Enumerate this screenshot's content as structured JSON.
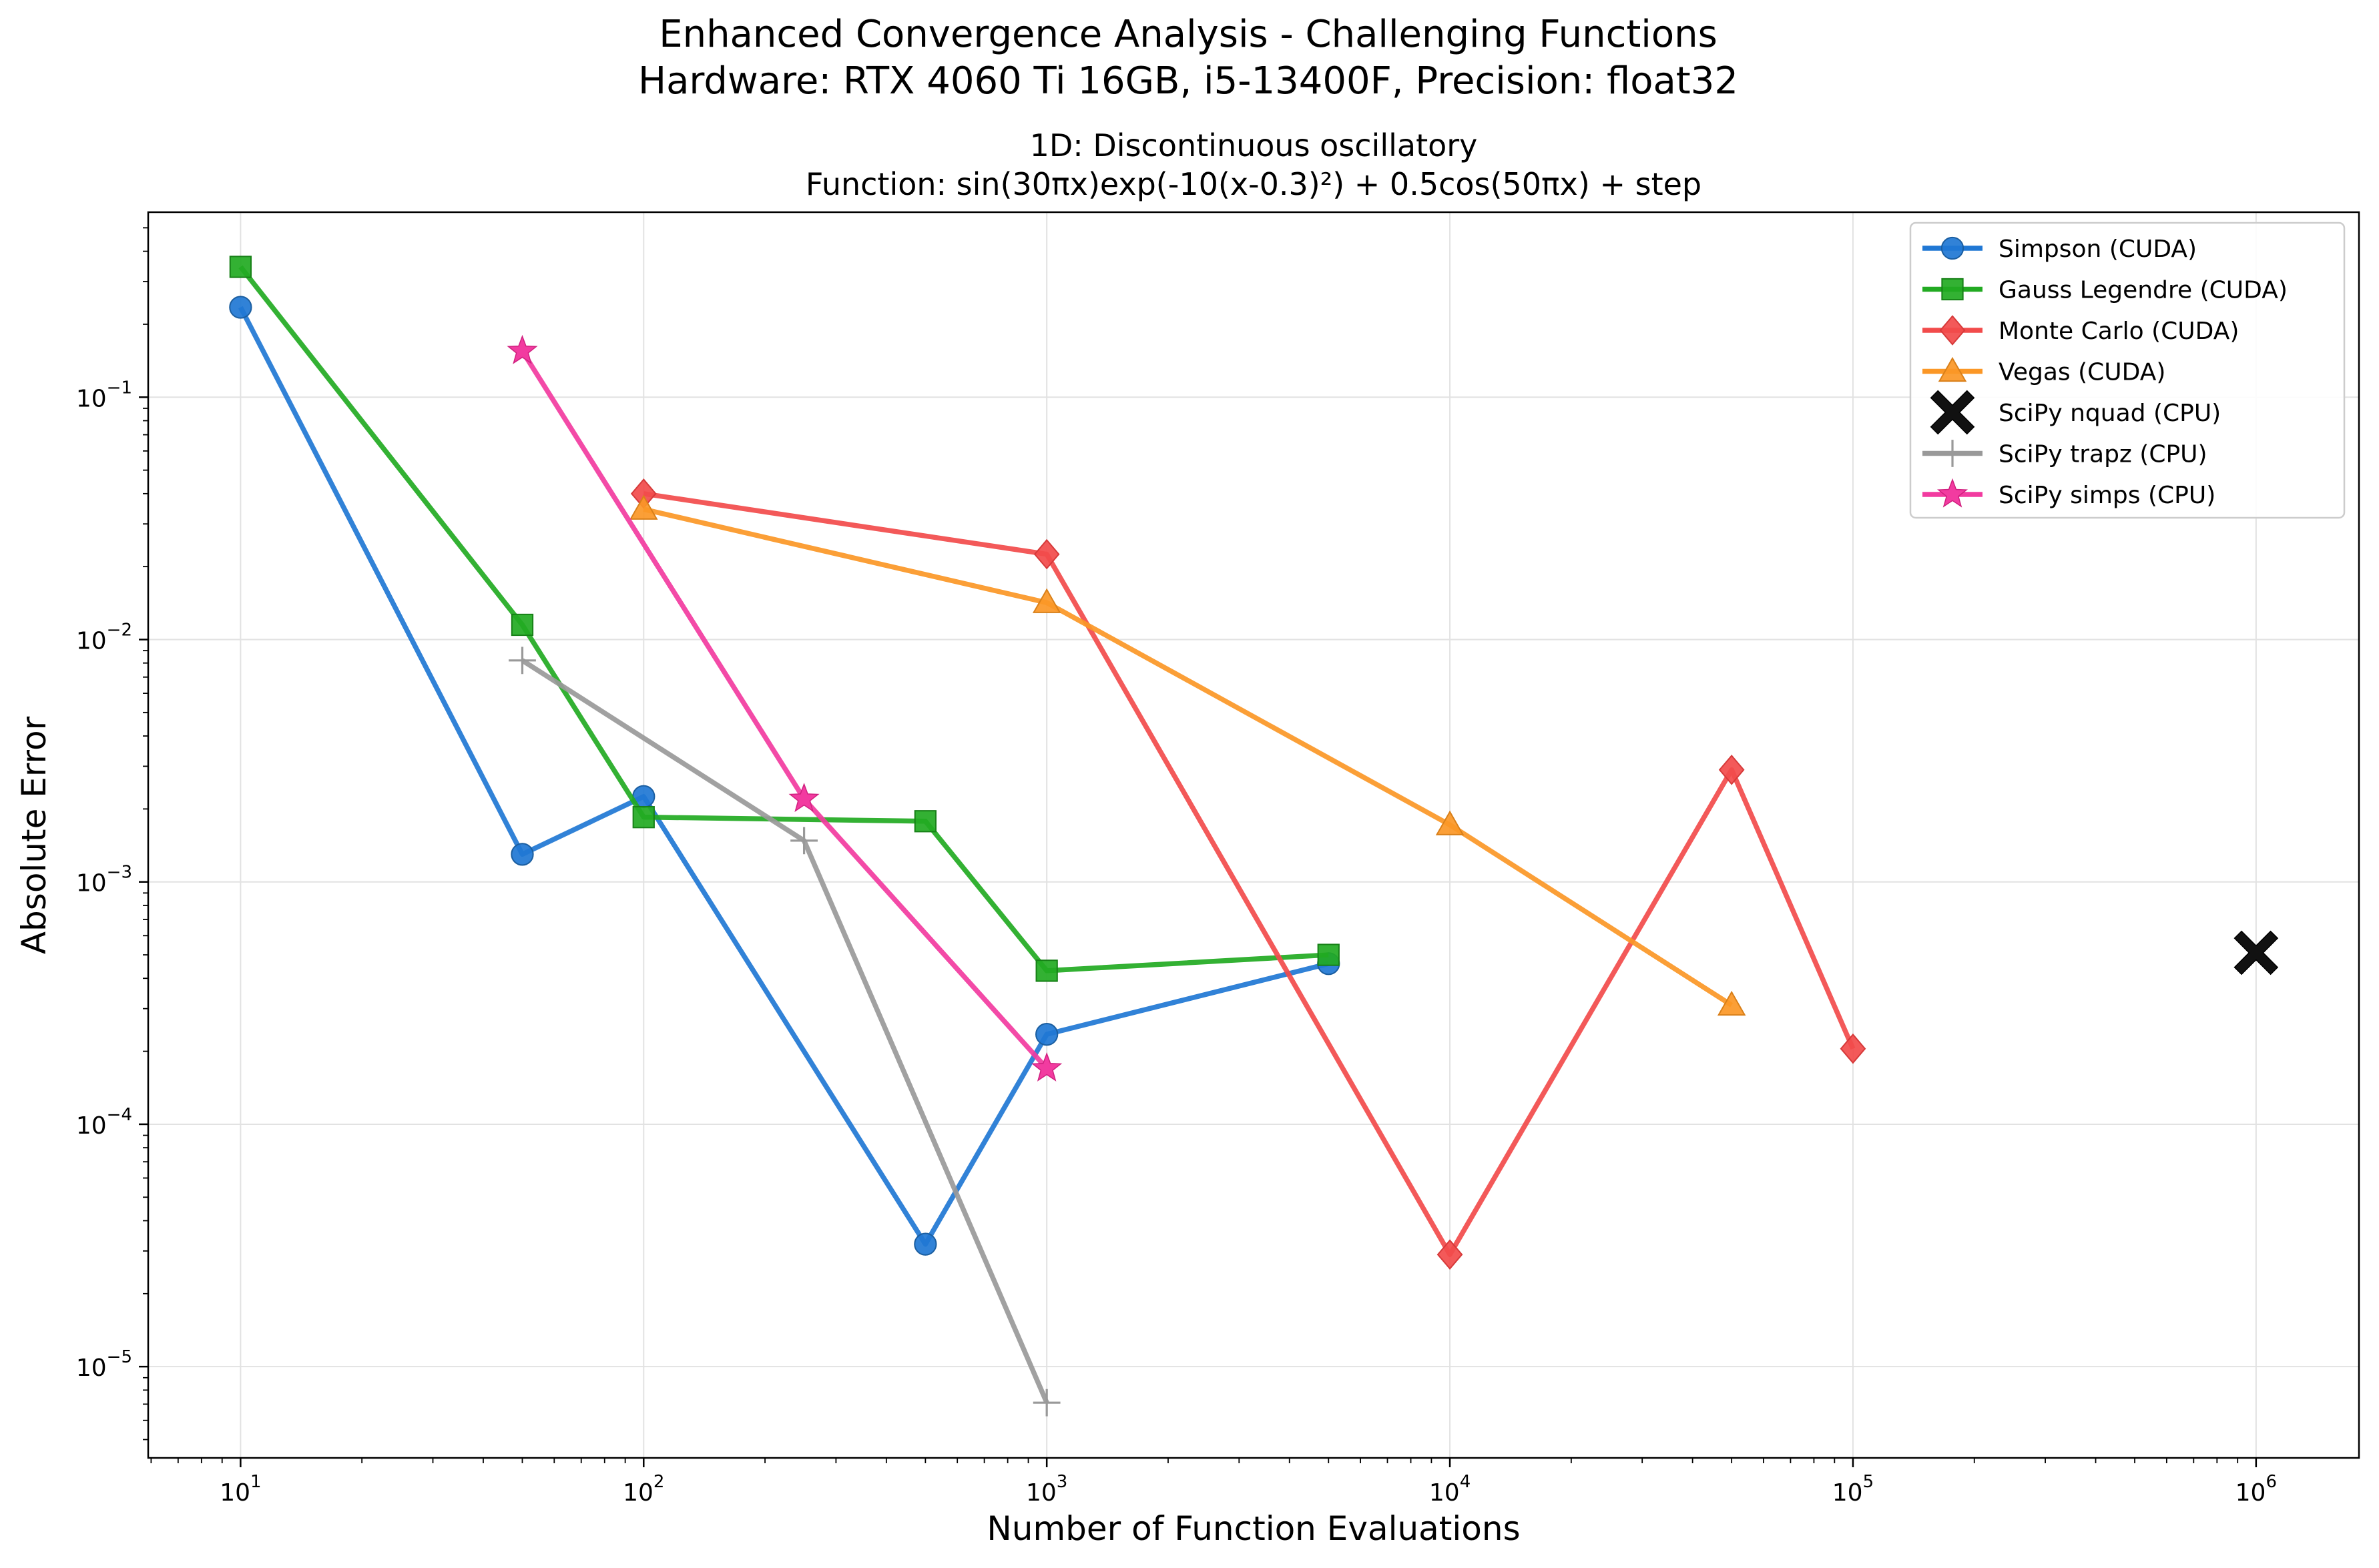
{
  "figure": {
    "suptitle_line1": "Enhanced Convergence Analysis - Challenging Functions",
    "suptitle_line2": "Hardware: RTX 4060 Ti 16GB, i5-13400F, Precision: float32"
  },
  "chart_data": {
    "type": "line",
    "title_line1": "1D: Discontinuous oscillatory",
    "title_line2": "Function: sin(30πx)exp(-10(x-0.3)²) + 0.5cos(50πx) + step",
    "xlabel": "Number of Function Evaluations",
    "ylabel": "Absolute Error",
    "xscale": "log",
    "yscale": "log",
    "xlim": [
      5.9,
      1800000.0
    ],
    "ylim": [
      4.2e-06,
      0.58
    ],
    "grid": true,
    "legend_loc": "upper right",
    "x_ticks": [
      {
        "value": 10,
        "base": "10",
        "exp": "1"
      },
      {
        "value": 100,
        "base": "10",
        "exp": "2"
      },
      {
        "value": 1000,
        "base": "10",
        "exp": "3"
      },
      {
        "value": 10000,
        "base": "10",
        "exp": "4"
      },
      {
        "value": 100000,
        "base": "10",
        "exp": "5"
      },
      {
        "value": 1000000,
        "base": "10",
        "exp": "6"
      }
    ],
    "y_ticks": [
      {
        "value": 1e-05,
        "base": "10",
        "exp": "−5"
      },
      {
        "value": 0.0001,
        "base": "10",
        "exp": "−4"
      },
      {
        "value": 0.001,
        "base": "10",
        "exp": "−3"
      },
      {
        "value": 0.01,
        "base": "10",
        "exp": "−2"
      },
      {
        "value": 0.1,
        "base": "10",
        "exp": "−1"
      }
    ],
    "series": [
      {
        "name": "Simpson (CUDA)",
        "color": "#1f77d4",
        "marker": "circle",
        "line": true,
        "x": [
          10,
          50,
          100,
          500,
          1000,
          5000
        ],
        "y": [
          0.235,
          0.0013,
          0.00225,
          3.2e-05,
          0.000235,
          0.00046
        ]
      },
      {
        "name": "Gauss Legendre (CUDA)",
        "color": "#22aa22",
        "marker": "square",
        "line": true,
        "x": [
          10,
          50,
          100,
          500,
          1000,
          5000
        ],
        "y": [
          0.345,
          0.0115,
          0.00185,
          0.00178,
          0.00043,
          0.0005
        ]
      },
      {
        "name": "Monte Carlo (CUDA)",
        "color": "#f24b4b",
        "marker": "diamond",
        "line": true,
        "x": [
          100,
          1000,
          10000,
          50000,
          100000
        ],
        "y": [
          0.04,
          0.0225,
          2.9e-05,
          0.0029,
          0.000205
        ]
      },
      {
        "name": "Vegas (CUDA)",
        "color": "#fb9726",
        "marker": "triangle",
        "line": true,
        "x": [
          100,
          1000,
          10000,
          50000
        ],
        "y": [
          0.0345,
          0.0142,
          0.00172,
          0.00031
        ]
      },
      {
        "name": "SciPy nquad (CPU)",
        "color": "#111111",
        "marker": "x",
        "line": false,
        "x": [
          1000000
        ],
        "y": [
          0.00051
        ]
      },
      {
        "name": "SciPy trapz (CPU)",
        "color": "#999999",
        "marker": "plus",
        "line": true,
        "x": [
          50,
          250,
          1000
        ],
        "y": [
          0.0082,
          0.00148,
          7.1e-06
        ]
      },
      {
        "name": "SciPy simps (CPU)",
        "color": "#f23ba0",
        "marker": "star",
        "line": true,
        "x": [
          50,
          250,
          1000
        ],
        "y": [
          0.155,
          0.0022,
          0.00017
        ]
      }
    ]
  }
}
